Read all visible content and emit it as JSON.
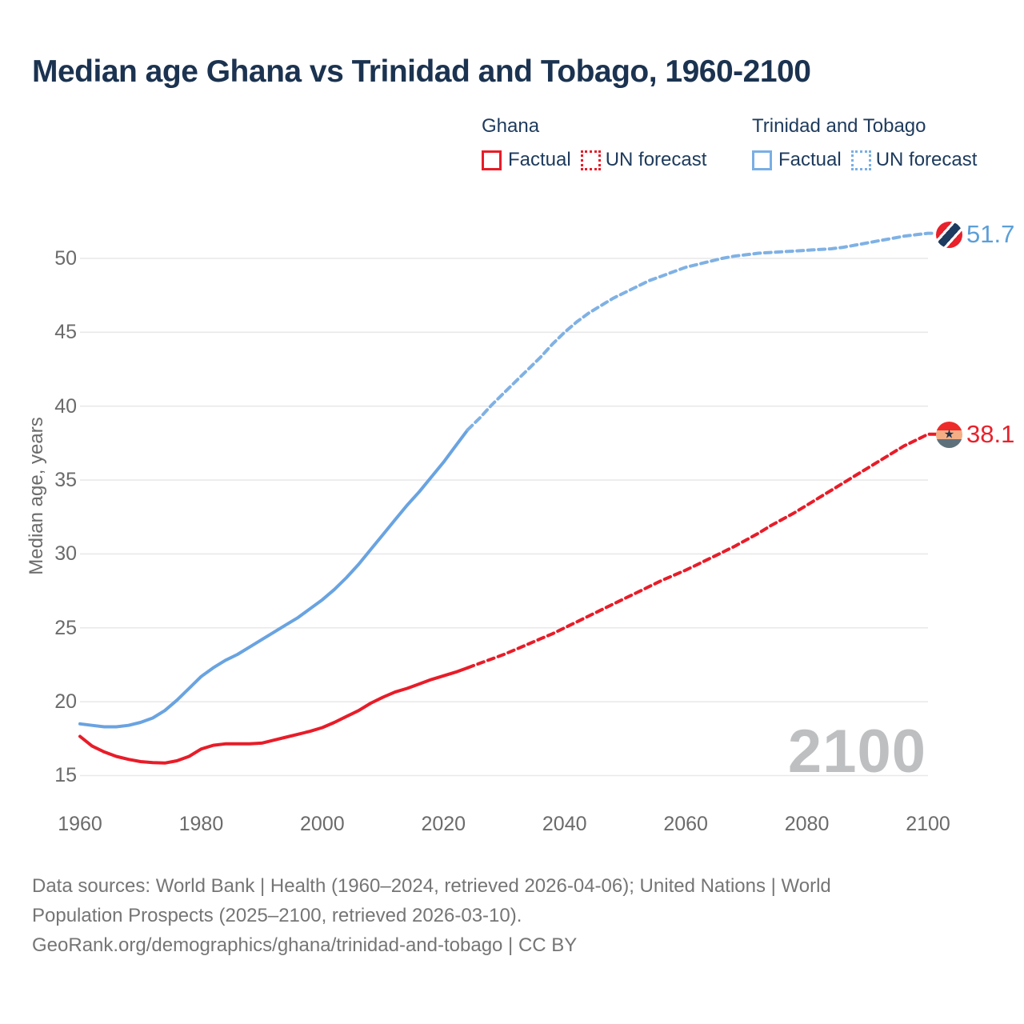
{
  "page": {
    "title": "Median age Ghana vs Trinidad and Tobago, 1960-2100",
    "watermark": "2100"
  },
  "legend": {
    "groups": [
      {
        "name": "Ghana",
        "items": [
          {
            "label": "Factual",
            "style": "solid"
          },
          {
            "label": "UN forecast",
            "style": "dotted"
          }
        ]
      },
      {
        "name": "Trinidad and Tobago",
        "items": [
          {
            "label": "Factual",
            "style": "solid"
          },
          {
            "label": "UN forecast",
            "style": "dotted"
          }
        ]
      }
    ]
  },
  "axes": {
    "y": {
      "label": "Median age, years",
      "ticks": [
        15,
        20,
        25,
        30,
        35,
        40,
        45,
        50
      ]
    },
    "x": {
      "ticks": [
        1960,
        1980,
        2000,
        2020,
        2040,
        2060,
        2080,
        2100
      ]
    }
  },
  "end_labels": [
    {
      "series": "Trinidad and Tobago",
      "value": "51.7",
      "flag": "trinidad-and-tobago-flag"
    },
    {
      "series": "Ghana",
      "value": "38.1",
      "flag": "ghana-flag"
    }
  ],
  "footer": {
    "lines": [
      "Data sources: World Bank | Health (1960–2024, retrieved 2026-04-06); United Nations | World",
      "Population Prospects (2025–2100, retrieved 2026-03-10).",
      "GeoRank.org/demographics/ghana/trinidad-and-tobago | CC BY"
    ]
  },
  "chart_data": {
    "type": "line",
    "title": "Median age Ghana vs Trinidad and Tobago, 1960-2100",
    "xlabel": "",
    "ylabel": "Median age, years",
    "x_range": [
      1960,
      2100
    ],
    "ylim": [
      15,
      52
    ],
    "grid": "horizontal",
    "legend_position": "top-right",
    "colors": {
      "ghana": "#e81c28",
      "trinidad": "#69a3e1",
      "trinidad_forecast": "#7fb1e4"
    },
    "series": [
      {
        "name": "Ghana Factual",
        "style": "solid",
        "color": "#e81c28",
        "points": [
          [
            1960,
            17.65
          ],
          [
            1962,
            17.0
          ],
          [
            1964,
            16.6
          ],
          [
            1966,
            16.3
          ],
          [
            1968,
            16.1
          ],
          [
            1970,
            15.95
          ],
          [
            1972,
            15.88
          ],
          [
            1974,
            15.85
          ],
          [
            1976,
            16.0
          ],
          [
            1978,
            16.3
          ],
          [
            1980,
            16.8
          ],
          [
            1982,
            17.05
          ],
          [
            1984,
            17.15
          ],
          [
            1986,
            17.15
          ],
          [
            1988,
            17.15
          ],
          [
            1990,
            17.2
          ],
          [
            1992,
            17.4
          ],
          [
            1994,
            17.6
          ],
          [
            1996,
            17.8
          ],
          [
            1998,
            18.0
          ],
          [
            2000,
            18.25
          ],
          [
            2002,
            18.6
          ],
          [
            2004,
            19.0
          ],
          [
            2006,
            19.4
          ],
          [
            2008,
            19.9
          ],
          [
            2010,
            20.3
          ],
          [
            2012,
            20.65
          ],
          [
            2014,
            20.9
          ],
          [
            2016,
            21.2
          ],
          [
            2018,
            21.5
          ],
          [
            2020,
            21.75
          ],
          [
            2022,
            22.0
          ],
          [
            2024,
            22.3
          ]
        ]
      },
      {
        "name": "Ghana UN forecast",
        "style": "dashed",
        "color": "#e81c28",
        "points": [
          [
            2024,
            22.3
          ],
          [
            2026,
            22.6
          ],
          [
            2028,
            22.9
          ],
          [
            2030,
            23.2
          ],
          [
            2032,
            23.55
          ],
          [
            2034,
            23.9
          ],
          [
            2036,
            24.25
          ],
          [
            2038,
            24.6
          ],
          [
            2040,
            25.0
          ],
          [
            2042,
            25.4
          ],
          [
            2044,
            25.8
          ],
          [
            2046,
            26.2
          ],
          [
            2048,
            26.6
          ],
          [
            2050,
            27.0
          ],
          [
            2052,
            27.4
          ],
          [
            2054,
            27.8
          ],
          [
            2056,
            28.2
          ],
          [
            2058,
            28.55
          ],
          [
            2060,
            28.9
          ],
          [
            2062,
            29.3
          ],
          [
            2064,
            29.7
          ],
          [
            2066,
            30.1
          ],
          [
            2068,
            30.5
          ],
          [
            2070,
            30.95
          ],
          [
            2072,
            31.4
          ],
          [
            2074,
            31.9
          ],
          [
            2076,
            32.35
          ],
          [
            2078,
            32.8
          ],
          [
            2080,
            33.3
          ],
          [
            2082,
            33.8
          ],
          [
            2084,
            34.3
          ],
          [
            2086,
            34.8
          ],
          [
            2088,
            35.3
          ],
          [
            2090,
            35.8
          ],
          [
            2092,
            36.3
          ],
          [
            2094,
            36.8
          ],
          [
            2096,
            37.3
          ],
          [
            2098,
            37.7
          ],
          [
            2100,
            38.1
          ]
        ]
      },
      {
        "name": "Trinidad and Tobago Factual",
        "style": "solid",
        "color": "#69a3e1",
        "points": [
          [
            1960,
            18.5
          ],
          [
            1962,
            18.4
          ],
          [
            1964,
            18.3
          ],
          [
            1966,
            18.3
          ],
          [
            1968,
            18.4
          ],
          [
            1970,
            18.6
          ],
          [
            1972,
            18.9
          ],
          [
            1974,
            19.4
          ],
          [
            1976,
            20.1
          ],
          [
            1978,
            20.9
          ],
          [
            1980,
            21.7
          ],
          [
            1982,
            22.3
          ],
          [
            1984,
            22.8
          ],
          [
            1986,
            23.2
          ],
          [
            1988,
            23.7
          ],
          [
            1990,
            24.2
          ],
          [
            1992,
            24.7
          ],
          [
            1994,
            25.2
          ],
          [
            1996,
            25.7
          ],
          [
            1998,
            26.3
          ],
          [
            2000,
            26.9
          ],
          [
            2002,
            27.6
          ],
          [
            2004,
            28.4
          ],
          [
            2006,
            29.3
          ],
          [
            2008,
            30.3
          ],
          [
            2010,
            31.3
          ],
          [
            2012,
            32.3
          ],
          [
            2014,
            33.3
          ],
          [
            2016,
            34.2
          ],
          [
            2018,
            35.2
          ],
          [
            2020,
            36.2
          ],
          [
            2022,
            37.3
          ],
          [
            2024,
            38.4
          ]
        ]
      },
      {
        "name": "Trinidad and Tobago UN forecast",
        "style": "dashed",
        "color": "#7fb1e4",
        "points": [
          [
            2024,
            38.4
          ],
          [
            2026,
            39.2
          ],
          [
            2028,
            40.1
          ],
          [
            2030,
            40.9
          ],
          [
            2032,
            41.7
          ],
          [
            2034,
            42.5
          ],
          [
            2036,
            43.3
          ],
          [
            2038,
            44.2
          ],
          [
            2040,
            45.0
          ],
          [
            2042,
            45.7
          ],
          [
            2044,
            46.3
          ],
          [
            2046,
            46.8
          ],
          [
            2048,
            47.3
          ],
          [
            2050,
            47.7
          ],
          [
            2052,
            48.1
          ],
          [
            2054,
            48.5
          ],
          [
            2056,
            48.8
          ],
          [
            2058,
            49.1
          ],
          [
            2060,
            49.4
          ],
          [
            2062,
            49.6
          ],
          [
            2064,
            49.8
          ],
          [
            2066,
            50.0
          ],
          [
            2068,
            50.15
          ],
          [
            2070,
            50.25
          ],
          [
            2072,
            50.35
          ],
          [
            2074,
            50.4
          ],
          [
            2076,
            50.45
          ],
          [
            2078,
            50.5
          ],
          [
            2080,
            50.55
          ],
          [
            2082,
            50.6
          ],
          [
            2084,
            50.65
          ],
          [
            2086,
            50.75
          ],
          [
            2088,
            50.9
          ],
          [
            2090,
            51.05
          ],
          [
            2092,
            51.2
          ],
          [
            2094,
            51.35
          ],
          [
            2096,
            51.5
          ],
          [
            2098,
            51.6
          ],
          [
            2100,
            51.7
          ]
        ]
      }
    ],
    "end_values": {
      "trinidad": 51.7,
      "ghana": 38.1
    }
  }
}
